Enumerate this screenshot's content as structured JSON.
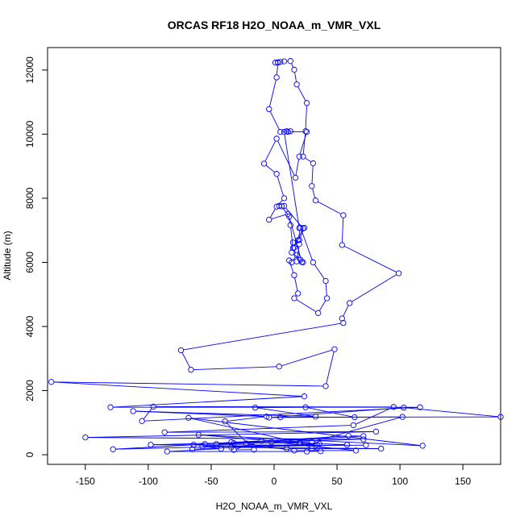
{
  "chart_data": {
    "type": "line",
    "title": "ORCAS RF18 H2O_NOAA_m_VMR_VXL",
    "xlabel": "H2O_NOAA_m_VMR_VXL",
    "ylabel": "Altitude (m)",
    "xlim": [
      -180,
      180
    ],
    "ylim": [
      -300,
      12700
    ],
    "xticks": [
      -150,
      -100,
      -50,
      0,
      50,
      100,
      150
    ],
    "yticks": [
      0,
      2000,
      4000,
      6000,
      8000,
      10000,
      12000
    ],
    "grid": false,
    "markers": "open-circle",
    "line_color": "#0000ff",
    "series": [
      {
        "points": [
          [
            1,
            12230
          ],
          [
            3,
            12240
          ],
          [
            5,
            12250
          ],
          [
            8,
            12270
          ],
          [
            13,
            12280
          ],
          [
            16,
            12010
          ],
          [
            18,
            11550
          ],
          [
            26,
            10970
          ],
          [
            25,
            10090
          ],
          [
            23,
            9300
          ],
          [
            31,
            9090
          ],
          [
            30,
            8380
          ],
          [
            33,
            7930
          ],
          [
            55,
            7470
          ],
          [
            54,
            6540
          ],
          [
            99,
            5660
          ],
          [
            60,
            4730
          ],
          [
            54,
            4250
          ],
          [
            55,
            4110
          ],
          [
            -74,
            3260
          ],
          [
            -66,
            2650
          ],
          [
            4,
            2750
          ],
          [
            48,
            3290
          ],
          [
            41,
            2140
          ],
          [
            -177,
            2270
          ],
          [
            24,
            1820
          ],
          [
            -130,
            1480
          ],
          [
            116,
            1480
          ],
          [
            -105,
            1050
          ],
          [
            -96,
            1500
          ],
          [
            95,
            1490
          ],
          [
            63,
            920
          ],
          [
            -87,
            700
          ],
          [
            81,
            720
          ],
          [
            -150,
            540
          ],
          [
            71,
            480
          ],
          [
            -98,
            310
          ],
          [
            73,
            300
          ],
          [
            -57,
            260
          ],
          [
            -42,
            190
          ],
          [
            -85,
            100
          ],
          [
            26,
            100
          ],
          [
            37,
            110
          ],
          [
            30,
            200
          ],
          [
            20,
            380
          ],
          [
            -68,
            1150
          ],
          [
            118,
            280
          ],
          [
            -60,
            620
          ],
          [
            34,
            320
          ],
          [
            -128,
            170
          ],
          [
            -55,
            330
          ],
          [
            -34,
            390
          ],
          [
            -10,
            430
          ],
          [
            -32,
            150
          ],
          [
            -16,
            160
          ],
          [
            -39,
            1040
          ],
          [
            -6,
            1190
          ],
          [
            -112,
            1360
          ],
          [
            33,
            1190
          ],
          [
            -15,
            1470
          ],
          [
            25,
            1480
          ],
          [
            64,
            1170
          ],
          [
            5,
            1170
          ],
          [
            180,
            1180
          ],
          [
            103,
            1470
          ],
          [
            -4,
            1160
          ],
          [
            102,
            1180
          ],
          [
            30,
            400
          ],
          [
            -2,
            400
          ],
          [
            65,
            130
          ],
          [
            16,
            130
          ],
          [
            -22,
            350
          ],
          [
            -46,
            330
          ],
          [
            59,
            590
          ],
          [
            71,
            580
          ],
          [
            -32,
            360
          ],
          [
            21,
            370
          ],
          [
            58,
            310
          ],
          [
            -34,
            230
          ],
          [
            85,
            190
          ],
          [
            10,
            190
          ],
          [
            -64,
            310
          ],
          [
            -65,
            170
          ],
          [
            36,
            340
          ]
        ]
      },
      {
        "points": [
          [
            11,
            10070
          ],
          [
            26,
            10070
          ],
          [
            20,
            9300
          ],
          [
            17,
            8640
          ],
          [
            2,
            9860
          ],
          [
            -8,
            9080
          ],
          [
            2,
            8760
          ],
          [
            8,
            8000
          ],
          [
            2,
            7740
          ],
          [
            -4,
            7330
          ],
          [
            11,
            7510
          ],
          [
            13,
            7160
          ],
          [
            15,
            6450
          ],
          [
            18,
            6230
          ],
          [
            14,
            6000
          ],
          [
            12,
            6060
          ],
          [
            16,
            5600
          ],
          [
            19,
            5030
          ],
          [
            16,
            4880
          ],
          [
            35,
            4420
          ],
          [
            42,
            4880
          ],
          [
            41,
            5420
          ],
          [
            31,
            6000
          ],
          [
            21,
            7080
          ],
          [
            19,
            6690
          ]
        ]
      },
      {
        "points": [
          [
            3,
            12230
          ],
          [
            2,
            11770
          ],
          [
            -4,
            10780
          ],
          [
            5,
            10070
          ],
          [
            10,
            10090
          ],
          [
            13,
            10090
          ],
          [
            8,
            10070
          ],
          [
            20,
            7070
          ],
          [
            24,
            7080
          ],
          [
            20,
            6700
          ],
          [
            15,
            6620
          ],
          [
            14,
            6310
          ],
          [
            21,
            6080
          ],
          [
            22,
            6010
          ],
          [
            12,
            7430
          ],
          [
            6,
            7750
          ],
          [
            4,
            7760
          ],
          [
            8,
            7760
          ],
          [
            23,
            7060
          ],
          [
            16,
            6460
          ],
          [
            20,
            6570
          ],
          [
            18,
            6030
          ],
          [
            23,
            6000
          ]
        ]
      }
    ]
  }
}
